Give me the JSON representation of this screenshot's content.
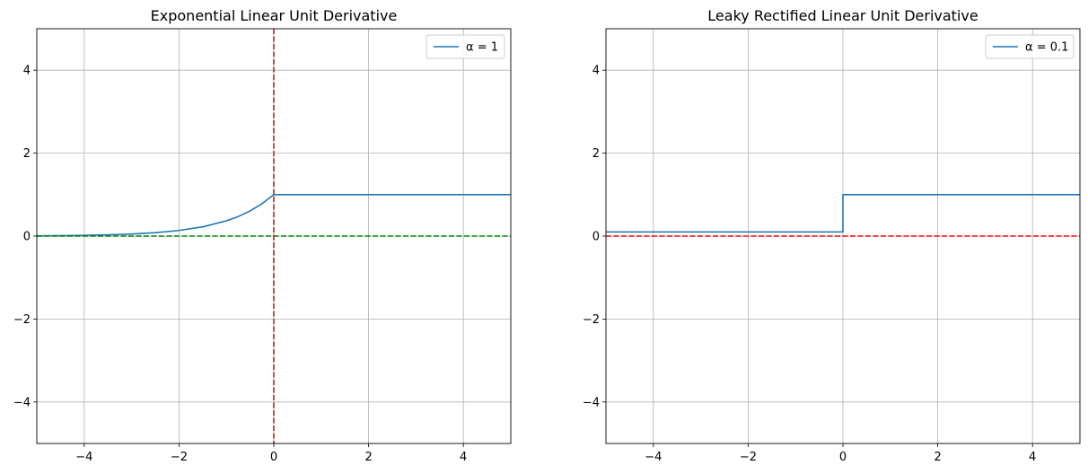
{
  "chart_data": [
    {
      "type": "line",
      "title": "Exponential Linear Unit Derivative",
      "xlim": [
        -5,
        5
      ],
      "ylim": [
        -5,
        5
      ],
      "xticks": [
        -4,
        -2,
        0,
        2,
        4
      ],
      "yticks": [
        -4,
        -2,
        0,
        2,
        4
      ],
      "xtick_labels": [
        "−4",
        "−2",
        "0",
        "2",
        "4"
      ],
      "ytick_labels": [
        "−4",
        "−2",
        "0",
        "2",
        "4"
      ],
      "grid": true,
      "legend_position": "top-right",
      "series": [
        {
          "name": "α = 1",
          "color": "#1f77b4",
          "x": [
            -5,
            -4.5,
            -4,
            -3.5,
            -3,
            -2.5,
            -2,
            -1.5,
            -1,
            -0.75,
            -0.5,
            -0.25,
            0,
            0,
            1,
            2,
            3,
            4,
            5
          ],
          "y": [
            0.007,
            0.011,
            0.018,
            0.03,
            0.05,
            0.082,
            0.135,
            0.223,
            0.368,
            0.472,
            0.607,
            0.779,
            1,
            1,
            1,
            1,
            1,
            1,
            1
          ]
        }
      ],
      "reference_lines": [
        {
          "orientation": "horizontal",
          "value": 0,
          "color": "#008000",
          "style": "dashed"
        },
        {
          "orientation": "vertical",
          "value": 0,
          "color": "#a52a2a",
          "style": "dashed"
        }
      ]
    },
    {
      "type": "line",
      "title": "Leaky Rectified Linear Unit Derivative",
      "xlim": [
        -5,
        5
      ],
      "ylim": [
        -5,
        5
      ],
      "xticks": [
        -4,
        -2,
        0,
        2,
        4
      ],
      "yticks": [
        -4,
        -2,
        0,
        2,
        4
      ],
      "xtick_labels": [
        "−4",
        "−2",
        "0",
        "2",
        "4"
      ],
      "ytick_labels": [
        "−4",
        "−2",
        "0",
        "2",
        "4"
      ],
      "grid": true,
      "legend_position": "top-right",
      "series": [
        {
          "name": "α = 0.1",
          "color": "#1f77b4",
          "x": [
            -5,
            0,
            0,
            5
          ],
          "y": [
            0.1,
            0.1,
            1,
            1
          ]
        }
      ],
      "reference_lines": [
        {
          "orientation": "horizontal",
          "value": 0,
          "color": "#ff0000",
          "style": "dashed"
        }
      ]
    }
  ]
}
